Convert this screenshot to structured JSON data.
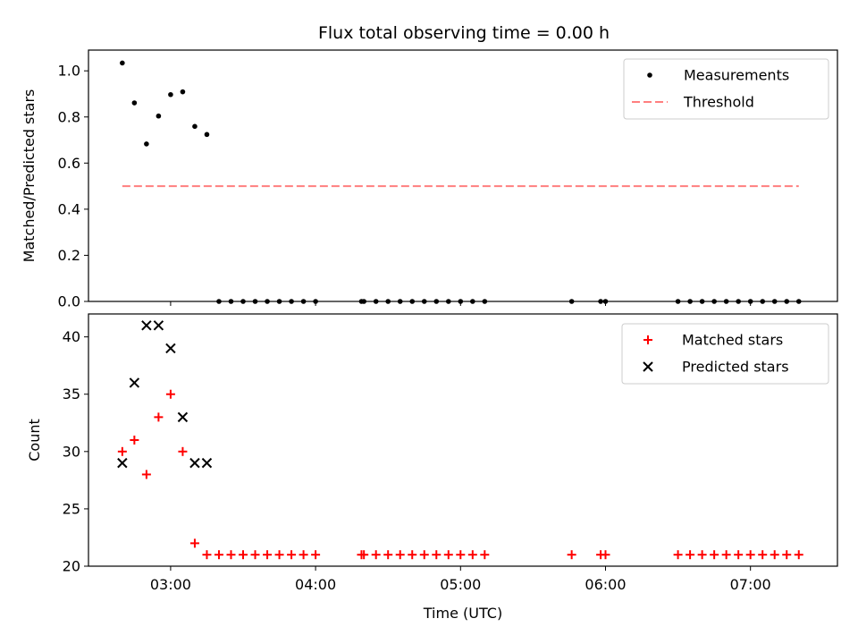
{
  "chart_data": [
    {
      "type": "scatter",
      "title": "Flux total observing time = 0.00 h",
      "xlabel": "",
      "ylabel": "Matched/Predicted stars",
      "ylim": [
        0.0,
        1.09
      ],
      "xlim": [
        "02:26",
        "07:36"
      ],
      "legend": "top-right",
      "x_ticks": [
        "03:00",
        "04:00",
        "05:00",
        "06:00",
        "07:00"
      ],
      "y_ticks": [
        "0.0",
        "0.2",
        "0.4",
        "0.6",
        "0.8",
        "1.0"
      ],
      "series": [
        {
          "name": "Measurements",
          "marker": "dot",
          "color": "#000000",
          "points": [
            [
              "02:40",
              1.034
            ],
            [
              "02:45",
              0.861
            ],
            [
              "02:50",
              0.683
            ],
            [
              "02:55",
              0.804
            ],
            [
              "03:00",
              0.897
            ],
            [
              "03:05",
              0.909
            ],
            [
              "03:10",
              0.759
            ],
            [
              "03:15",
              0.724
            ],
            [
              "03:20",
              0.0
            ],
            [
              "03:25",
              0.0
            ],
            [
              "03:30",
              0.0
            ],
            [
              "03:35",
              0.0
            ],
            [
              "03:40",
              0.0
            ],
            [
              "03:45",
              0.0
            ],
            [
              "03:50",
              0.0
            ],
            [
              "03:55",
              0.0
            ],
            [
              "04:00",
              0.0
            ],
            [
              "04:19",
              0.0
            ],
            [
              "04:20",
              0.0
            ],
            [
              "04:25",
              0.0
            ],
            [
              "04:30",
              0.0
            ],
            [
              "04:35",
              0.0
            ],
            [
              "04:40",
              0.0
            ],
            [
              "04:45",
              0.0
            ],
            [
              "04:50",
              0.0
            ],
            [
              "04:55",
              0.0
            ],
            [
              "05:00",
              0.0
            ],
            [
              "05:05",
              0.0
            ],
            [
              "05:10",
              0.0
            ],
            [
              "05:46",
              0.0
            ],
            [
              "05:58",
              0.0
            ],
            [
              "06:00",
              0.0
            ],
            [
              "06:30",
              0.0
            ],
            [
              "06:35",
              0.0
            ],
            [
              "06:40",
              0.0
            ],
            [
              "06:45",
              0.0
            ],
            [
              "06:50",
              0.0
            ],
            [
              "06:55",
              0.0
            ],
            [
              "07:00",
              0.0
            ],
            [
              "07:05",
              0.0
            ],
            [
              "07:10",
              0.0
            ],
            [
              "07:15",
              0.0
            ],
            [
              "07:20",
              0.0
            ]
          ]
        },
        {
          "name": "Threshold",
          "style": "dashed-line",
          "color": "#ff7f7f",
          "points": [
            [
              "02:40",
              0.5
            ],
            [
              "07:20",
              0.5
            ]
          ]
        }
      ]
    },
    {
      "type": "scatter",
      "title": "",
      "xlabel": "Time (UTC)",
      "ylabel": "Count",
      "ylim": [
        20,
        42
      ],
      "xlim": [
        "02:26",
        "07:36"
      ],
      "legend": "top-right",
      "x_ticks": [
        "03:00",
        "04:00",
        "05:00",
        "06:00",
        "07:00"
      ],
      "y_ticks": [
        "20",
        "25",
        "30",
        "35",
        "40"
      ],
      "series": [
        {
          "name": "Matched stars",
          "marker": "plus",
          "color": "#ff0000",
          "points": [
            [
              "02:40",
              30
            ],
            [
              "02:45",
              31
            ],
            [
              "02:50",
              28
            ],
            [
              "02:55",
              33
            ],
            [
              "03:00",
              35
            ],
            [
              "03:05",
              30
            ],
            [
              "03:10",
              22
            ],
            [
              "03:15",
              21
            ],
            [
              "03:20",
              21
            ],
            [
              "03:25",
              21
            ],
            [
              "03:30",
              21
            ],
            [
              "03:35",
              21
            ],
            [
              "03:40",
              21
            ],
            [
              "03:45",
              21
            ],
            [
              "03:50",
              21
            ],
            [
              "03:55",
              21
            ],
            [
              "04:00",
              21
            ],
            [
              "04:19",
              21
            ],
            [
              "04:20",
              21
            ],
            [
              "04:25",
              21
            ],
            [
              "04:30",
              21
            ],
            [
              "04:35",
              21
            ],
            [
              "04:40",
              21
            ],
            [
              "04:45",
              21
            ],
            [
              "04:50",
              21
            ],
            [
              "04:55",
              21
            ],
            [
              "05:00",
              21
            ],
            [
              "05:05",
              21
            ],
            [
              "05:10",
              21
            ],
            [
              "05:46",
              21
            ],
            [
              "05:58",
              21
            ],
            [
              "06:00",
              21
            ],
            [
              "06:30",
              21
            ],
            [
              "06:35",
              21
            ],
            [
              "06:40",
              21
            ],
            [
              "06:45",
              21
            ],
            [
              "06:50",
              21
            ],
            [
              "06:55",
              21
            ],
            [
              "07:00",
              21
            ],
            [
              "07:05",
              21
            ],
            [
              "07:10",
              21
            ],
            [
              "07:15",
              21
            ],
            [
              "07:20",
              21
            ]
          ]
        },
        {
          "name": "Predicted stars",
          "marker": "x",
          "color": "#000000",
          "points": [
            [
              "02:40",
              29
            ],
            [
              "02:45",
              36
            ],
            [
              "02:50",
              41
            ],
            [
              "02:55",
              41
            ],
            [
              "03:00",
              39
            ],
            [
              "03:05",
              33
            ],
            [
              "03:10",
              29
            ],
            [
              "03:15",
              29
            ]
          ]
        }
      ]
    }
  ]
}
